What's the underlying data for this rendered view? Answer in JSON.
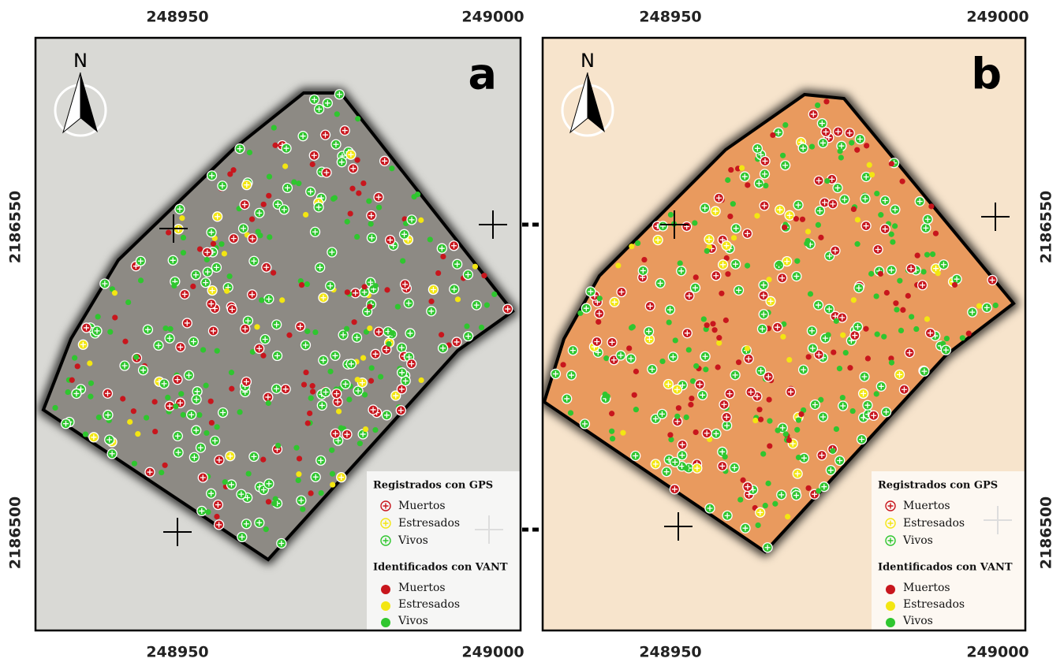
{
  "panels": [
    {
      "label": "a",
      "north": "N",
      "x_top": [
        "248950",
        "249000"
      ],
      "x_bottom": [
        "248950",
        "249000"
      ],
      "y_side": [
        "2186550",
        "2186500"
      ],
      "legend": {
        "gps_title": "Registrados con GPS",
        "gps_items": [
          "Muertos",
          "Estresados",
          "Vivos"
        ],
        "vant_title": "Identificados con VANT",
        "vant_items": [
          "Muertos",
          "Estresados",
          "Vivos"
        ]
      }
    },
    {
      "label": "b",
      "north": "N",
      "x_top": [
        "248950",
        "249000"
      ],
      "x_bottom": [
        "248950",
        "249000"
      ],
      "y_side": [
        "2186550",
        "2186500"
      ],
      "legend": {
        "gps_title": "Registrados con GPS",
        "gps_items": [
          "Muertos",
          "Estresados",
          "Vivos"
        ],
        "vant_title": "Identificados con VANT",
        "vant_items": [
          "Muertos",
          "Estresados",
          "Vivos"
        ]
      }
    }
  ]
}
